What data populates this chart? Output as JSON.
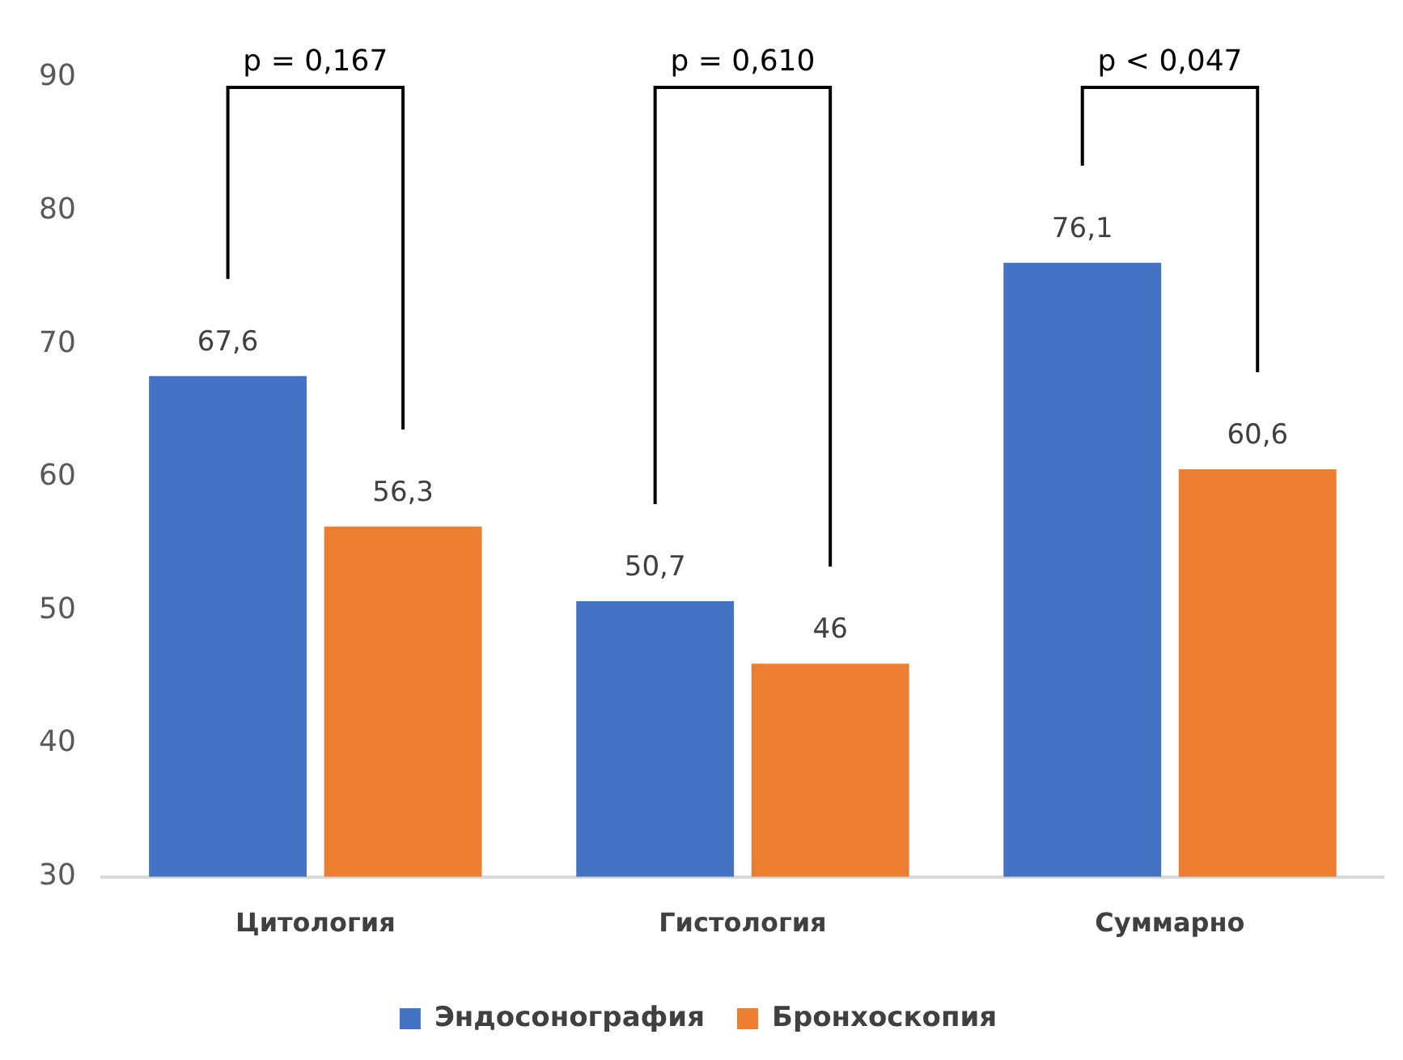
{
  "chart_data": {
    "type": "bar",
    "categories": [
      "Цитология",
      "Гистология",
      "Суммарно"
    ],
    "series": [
      {
        "name": "Эндосонография",
        "color": "#4472c4",
        "values": [
          67.6,
          50.7,
          76.1
        ],
        "value_labels": [
          "67,6",
          "50,7",
          "76,1"
        ]
      },
      {
        "name": "Бронхоскопия",
        "color": "#ed7d31",
        "values": [
          56.3,
          46,
          60.6
        ],
        "value_labels": [
          "56,3",
          "46",
          "60,6"
        ]
      }
    ],
    "ylim": [
      30,
      90
    ],
    "yticks": [
      30,
      40,
      50,
      60,
      70,
      80,
      90
    ],
    "grid": false,
    "legend": "bottom",
    "annotations": [
      "p = 0,167",
      "p = 0,610",
      "p < 0,047"
    ]
  }
}
